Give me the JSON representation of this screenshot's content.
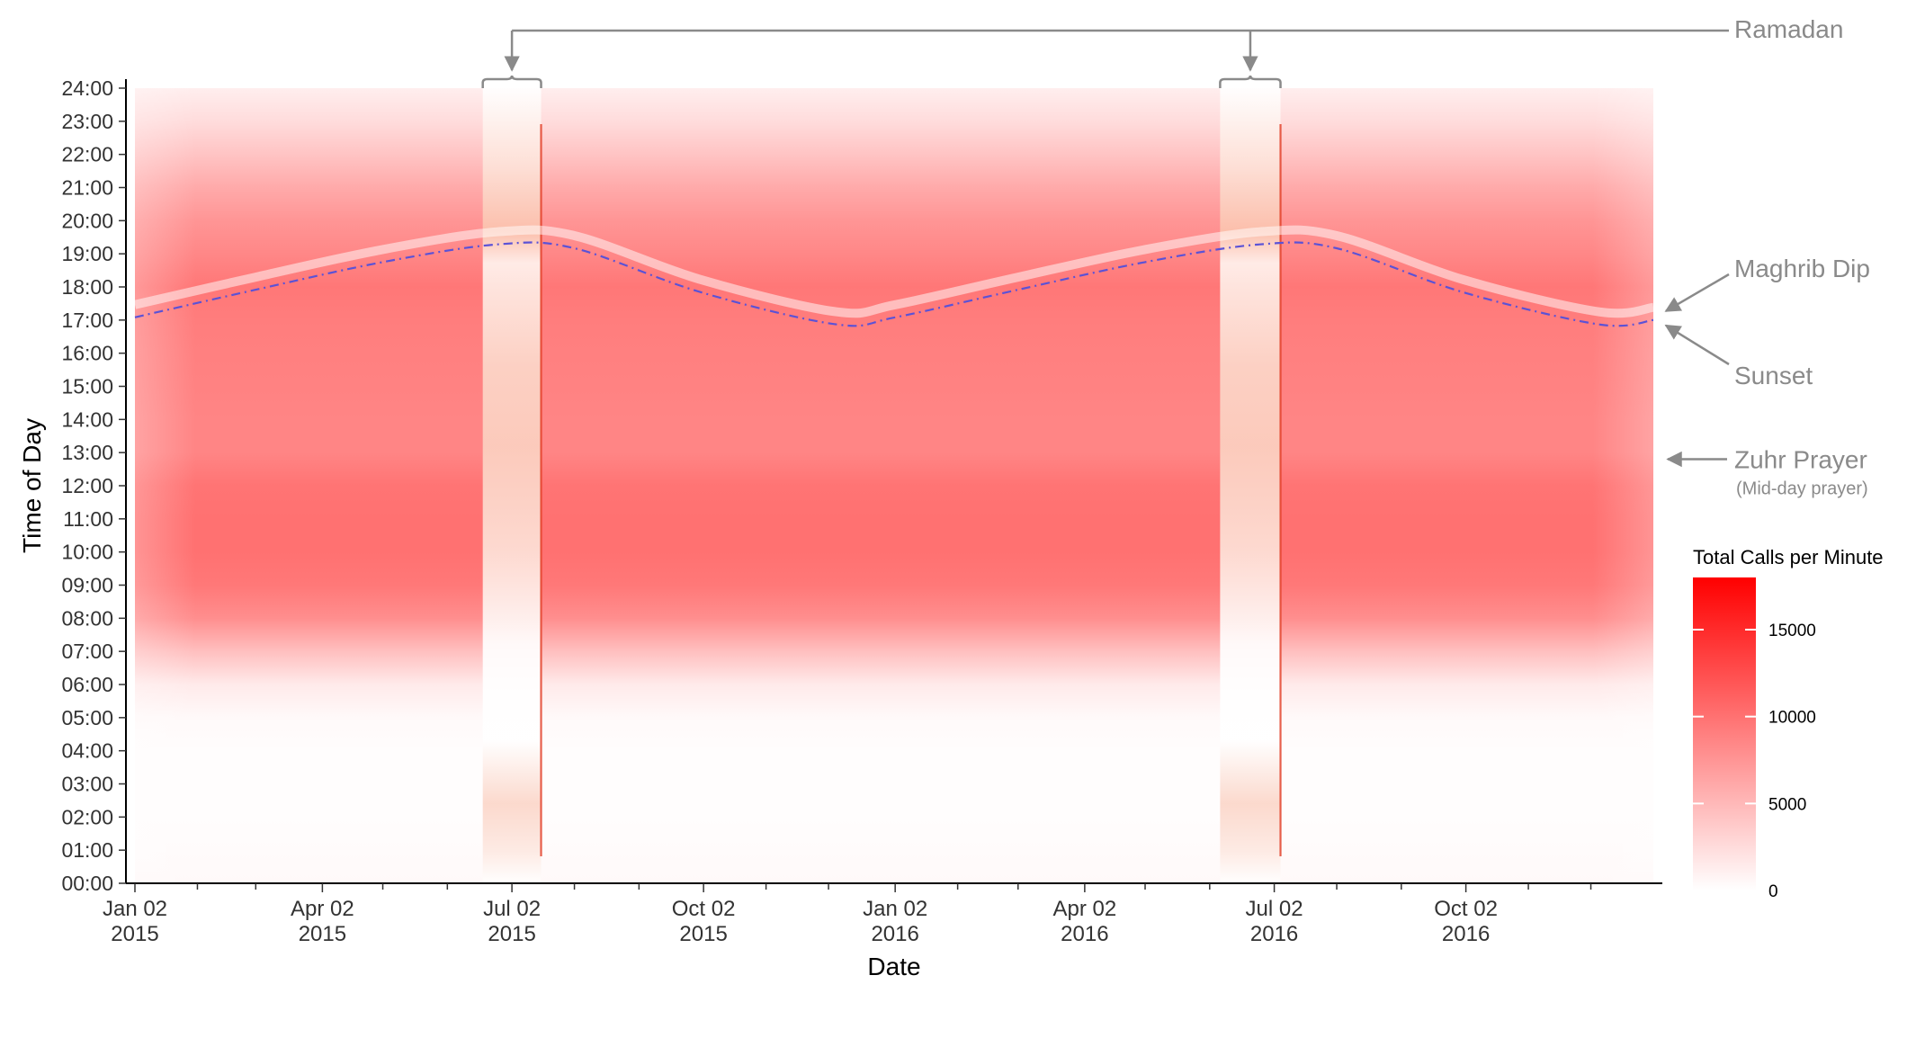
{
  "chart_data": {
    "type": "heatmap",
    "xlabel": "Date",
    "ylabel": "Time of Day",
    "x_range": [
      "2015-01-02",
      "2016-12-31"
    ],
    "y_range": [
      "00:00",
      "24:00"
    ],
    "x_ticks": [
      {
        "date": "2015-01-02",
        "label": [
          "Jan 02",
          "2015"
        ]
      },
      {
        "date": "2015-04-02",
        "label": [
          "Apr 02",
          "2015"
        ]
      },
      {
        "date": "2015-07-02",
        "label": [
          "Jul 02",
          "2015"
        ]
      },
      {
        "date": "2015-10-02",
        "label": [
          "Oct 02",
          "2015"
        ]
      },
      {
        "date": "2016-01-02",
        "label": [
          "Jan 02",
          "2016"
        ]
      },
      {
        "date": "2016-04-02",
        "label": [
          "Apr 02",
          "2016"
        ]
      },
      {
        "date": "2016-07-02",
        "label": [
          "Jul 02",
          "2016"
        ]
      },
      {
        "date": "2016-10-02",
        "label": [
          "Oct 02",
          "2016"
        ]
      }
    ],
    "x_minor_ticks": [
      "2015-02-01",
      "2015-03-01",
      "2015-05-01",
      "2015-06-01",
      "2015-08-01",
      "2015-09-01",
      "2015-11-01",
      "2015-12-01",
      "2016-02-01",
      "2016-03-01",
      "2016-05-01",
      "2016-06-01",
      "2016-08-01",
      "2016-09-01",
      "2016-11-01",
      "2016-12-01"
    ],
    "y_ticks": [
      "00:00",
      "01:00",
      "02:00",
      "03:00",
      "04:00",
      "05:00",
      "06:00",
      "07:00",
      "08:00",
      "09:00",
      "10:00",
      "11:00",
      "12:00",
      "13:00",
      "14:00",
      "15:00",
      "16:00",
      "17:00",
      "18:00",
      "19:00",
      "20:00",
      "21:00",
      "22:00",
      "23:00",
      "24:00"
    ],
    "legend": {
      "title": "Total Calls per Minute",
      "min": 0,
      "max": 18000,
      "ticks": [
        0,
        5000,
        10000,
        15000
      ],
      "low_color": "#ffffff",
      "high_color": "#ff0000",
      "placement": "right"
    },
    "hourly_profile_calls_per_minute": [
      {
        "hour": 0,
        "value": 400
      },
      {
        "hour": 1,
        "value": 250
      },
      {
        "hour": 2,
        "value": 150
      },
      {
        "hour": 3,
        "value": 120
      },
      {
        "hour": 4,
        "value": 150
      },
      {
        "hour": 5,
        "value": 400
      },
      {
        "hour": 6,
        "value": 1500
      },
      {
        "hour": 7,
        "value": 4500
      },
      {
        "hour": 8,
        "value": 8000
      },
      {
        "hour": 9,
        "value": 9500
      },
      {
        "hour": 10,
        "value": 10000
      },
      {
        "hour": 11,
        "value": 10000
      },
      {
        "hour": 12,
        "value": 9800
      },
      {
        "hour": 13,
        "value": 8600
      },
      {
        "hour": 14,
        "value": 8600
      },
      {
        "hour": 15,
        "value": 8800
      },
      {
        "hour": 16,
        "value": 9000
      },
      {
        "hour": 17,
        "value": 9200
      },
      {
        "hour": 18,
        "value": 9600
      },
      {
        "hour": 19,
        "value": 8500
      },
      {
        "hour": 20,
        "value": 7500
      },
      {
        "hour": 21,
        "value": 6000
      },
      {
        "hour": 22,
        "value": 4200
      },
      {
        "hour": 23,
        "value": 2500
      },
      {
        "hour": 24,
        "value": 1200
      }
    ],
    "sunset_curve": [
      {
        "date": "2015-01-02",
        "time": "17:05"
      },
      {
        "date": "2015-03-01",
        "time": "17:55"
      },
      {
        "date": "2015-05-01",
        "time": "18:45"
      },
      {
        "date": "2015-06-25",
        "time": "19:17"
      },
      {
        "date": "2015-08-01",
        "time": "19:10"
      },
      {
        "date": "2015-10-01",
        "time": "17:50"
      },
      {
        "date": "2015-12-05",
        "time": "16:52"
      },
      {
        "date": "2016-01-02",
        "time": "17:05"
      },
      {
        "date": "2016-03-01",
        "time": "17:55"
      },
      {
        "date": "2016-05-01",
        "time": "18:45"
      },
      {
        "date": "2016-06-25",
        "time": "19:17"
      },
      {
        "date": "2016-08-01",
        "time": "19:10"
      },
      {
        "date": "2016-10-01",
        "time": "17:50"
      },
      {
        "date": "2016-12-05",
        "time": "16:52"
      },
      {
        "date": "2016-12-31",
        "time": "17:00"
      }
    ],
    "ramadan_periods": [
      {
        "start": "2015-06-18",
        "end": "2015-07-16"
      },
      {
        "start": "2016-06-06",
        "end": "2016-07-05"
      }
    ],
    "annotations": {
      "ramadan": "Ramadan",
      "maghrib_dip": "Maghrib Dip",
      "sunset": "Sunset",
      "zuhr": "Zuhr Prayer",
      "zuhr_sub": "(Mid-day prayer)"
    },
    "colors": {
      "sunset_line": "#5b52d6",
      "annotation_grey": "#8a8a8a"
    }
  }
}
